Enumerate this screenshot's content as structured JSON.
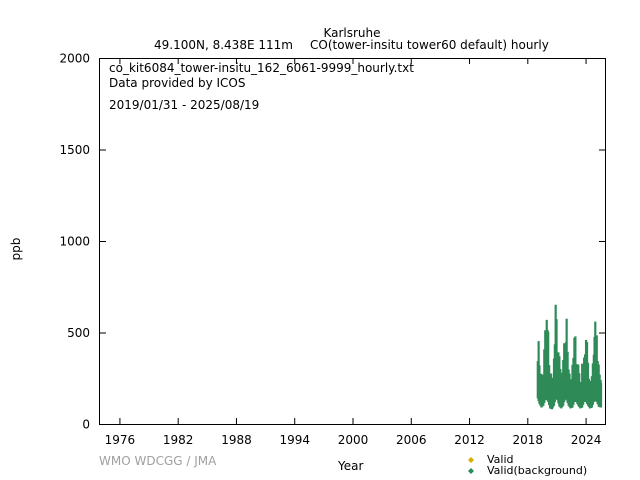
{
  "header": {
    "station": "Karlsruhe",
    "location": "49.100N, 8.438E 111m",
    "dataset": "CO(tower-insitu tower60 default) hourly"
  },
  "info": {
    "file": "co_kit6084_tower-insitu_162_6061-9999_hourly.txt",
    "provider": "Data provided by ICOS",
    "period": "2019/01/31 - 2025/08/19"
  },
  "credit": "WMO WDCGG / JMA",
  "colors": {
    "valid": "#d4b000",
    "valid_background": "#2e8b57",
    "axis": "#000000"
  },
  "chart_data": {
    "type": "scatter",
    "xlabel": "Year",
    "ylabel": "ppb",
    "xlim": [
      1974,
      2026
    ],
    "ylim": [
      0,
      2000
    ],
    "x_ticks": [
      1976,
      1982,
      1988,
      1994,
      2000,
      2006,
      2012,
      2018,
      2024
    ],
    "y_ticks": [
      0,
      500,
      1000,
      1500,
      2000
    ],
    "grid": false,
    "legend_position": "bottom-right",
    "series": [
      {
        "name": "Valid",
        "marker": "diamond",
        "points": []
      },
      {
        "name": "Valid(background)",
        "marker": "diamond",
        "monthly_envelope": [
          {
            "x": 2019.08,
            "low": 140,
            "high": 510
          },
          {
            "x": 2019.25,
            "low": 110,
            "high": 420
          },
          {
            "x": 2019.45,
            "low": 90,
            "high": 300
          },
          {
            "x": 2019.65,
            "low": 100,
            "high": 330
          },
          {
            "x": 2019.85,
            "low": 130,
            "high": 560
          },
          {
            "x": 2020.0,
            "low": 140,
            "high": 640
          },
          {
            "x": 2020.15,
            "low": 120,
            "high": 540
          },
          {
            "x": 2020.35,
            "low": 85,
            "high": 330
          },
          {
            "x": 2020.55,
            "low": 80,
            "high": 280
          },
          {
            "x": 2020.75,
            "low": 100,
            "high": 400
          },
          {
            "x": 2020.92,
            "low": 140,
            "high": 670
          },
          {
            "x": 2021.1,
            "low": 130,
            "high": 560
          },
          {
            "x": 2021.3,
            "low": 95,
            "high": 380
          },
          {
            "x": 2021.5,
            "low": 85,
            "high": 290
          },
          {
            "x": 2021.7,
            "low": 100,
            "high": 360
          },
          {
            "x": 2021.9,
            "low": 140,
            "high": 550
          },
          {
            "x": 2022.05,
            "low": 130,
            "high": 610
          },
          {
            "x": 2022.25,
            "low": 100,
            "high": 420
          },
          {
            "x": 2022.45,
            "low": 85,
            "high": 300
          },
          {
            "x": 2022.65,
            "low": 90,
            "high": 330
          },
          {
            "x": 2022.85,
            "low": 120,
            "high": 520
          },
          {
            "x": 2023.05,
            "low": 120,
            "high": 480
          },
          {
            "x": 2023.25,
            "low": 100,
            "high": 380
          },
          {
            "x": 2023.45,
            "low": 85,
            "high": 280
          },
          {
            "x": 2023.65,
            "low": 90,
            "high": 340
          },
          {
            "x": 2023.85,
            "low": 120,
            "high": 460
          },
          {
            "x": 2024.05,
            "low": 120,
            "high": 520
          },
          {
            "x": 2024.25,
            "low": 100,
            "high": 400
          },
          {
            "x": 2024.45,
            "low": 85,
            "high": 280
          },
          {
            "x": 2024.65,
            "low": 90,
            "high": 330
          },
          {
            "x": 2024.85,
            "low": 120,
            "high": 490
          },
          {
            "x": 2025.0,
            "low": 130,
            "high": 650
          },
          {
            "x": 2025.15,
            "low": 120,
            "high": 500
          },
          {
            "x": 2025.35,
            "low": 95,
            "high": 340
          },
          {
            "x": 2025.55,
            "low": 90,
            "high": 270
          },
          {
            "x": 2025.63,
            "low": 95,
            "high": 250
          }
        ]
      }
    ]
  }
}
